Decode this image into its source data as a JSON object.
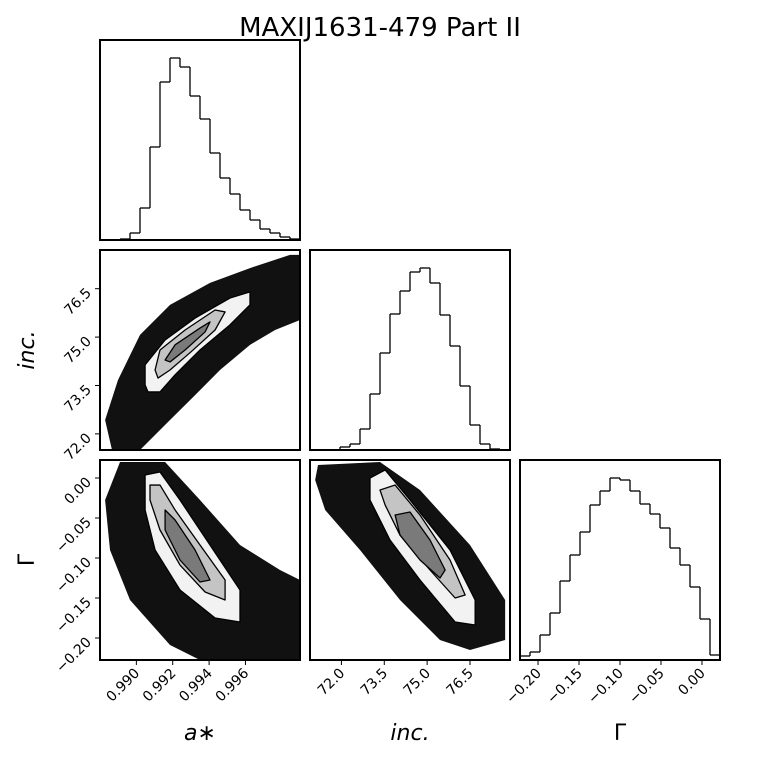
{
  "title": "MAXIJ1631-479 Part II",
  "chart_data": [
    {
      "type": "histogram",
      "color": "#000000",
      "xlim": [
        0.988,
        0.999
      ],
      "ylim": [
        0,
        200
      ],
      "bins": [
        0.988,
        0.98855,
        0.9891,
        0.98965,
        0.9902,
        0.99075,
        0.9913,
        0.99185,
        0.9924,
        0.99295,
        0.9935,
        0.99405,
        0.9946,
        0.99515,
        0.9957,
        0.99625,
        0.9968,
        0.99735,
        0.9979,
        0.99845,
        0.999
      ],
      "values": [
        0,
        0,
        1,
        7,
        32,
        93,
        158,
        182,
        173,
        144,
        121,
        87,
        62,
        46,
        30,
        20,
        11,
        7,
        3,
        1
      ]
    },
    {
      "type": "contour",
      "xlim": [
        0.988,
        0.999
      ],
      "ylim": [
        71.5,
        77.7
      ],
      "ylabel": "inc.",
      "yticks": [
        {
          "value": 72,
          "label": "72.0"
        },
        73.5,
        {
          "value": 75,
          "label": "75.0"
        },
        76.5
      ],
      "cloud_color": "#111111",
      "level_colors": [
        "#f2f2f2",
        "#c4c4c4",
        "#7a7a7a"
      ],
      "cloud": {
        "x": [
          0.98866,
          0.98828,
          0.98899,
          0.9902,
          0.99185,
          0.99405,
          0.99625,
          0.99845,
          0.999,
          0.999,
          0.99763,
          0.99625,
          0.9946,
          0.99323,
          0.99185,
          0.99075,
          0.9902
        ],
        "y": [
          71.5,
          72.43,
          73.67,
          75.07,
          76.0,
          76.68,
          77.14,
          77.55,
          77.55,
          75.53,
          75.22,
          74.76,
          73.98,
          73.2,
          72.43,
          71.81,
          71.5
        ]
      },
      "levels": [
        {
          "x": [
            0.99048,
            0.99048,
            0.99158,
            0.99323,
            0.99515,
            0.99625,
            0.99625,
            0.99515,
            0.9935,
            0.99213,
            0.9913,
            0.99064
          ],
          "y": [
            73.52,
            74.14,
            74.91,
            75.59,
            76.21,
            76.4,
            76.0,
            75.38,
            74.6,
            73.83,
            73.3,
            73.3
          ]
        },
        {
          "x": [
            0.99103,
            0.9913,
            0.99268,
            0.99433,
            0.99488,
            0.99433,
            0.993,
            0.99185,
            0.99119
          ],
          "y": [
            73.98,
            74.6,
            75.22,
            75.84,
            75.78,
            75.22,
            74.54,
            73.98,
            73.73
          ]
        },
        {
          "x": [
            0.99158,
            0.99213,
            0.9935,
            0.99405,
            0.99378,
            0.99268,
            0.99185
          ],
          "y": [
            74.29,
            74.76,
            75.28,
            75.47,
            75.16,
            74.6,
            74.23
          ]
        }
      ]
    },
    {
      "type": "histogram",
      "color": "#000000",
      "xlim": [
        70.9,
        77.9
      ],
      "ylim": [
        0,
        200
      ],
      "bins": [
        70.9,
        71.25,
        71.6,
        71.95,
        72.3,
        72.65,
        73.0,
        73.35,
        73.7,
        74.05,
        74.4,
        74.75,
        75.1,
        75.45,
        75.8,
        76.15,
        76.5,
        76.85,
        77.2,
        77.55,
        77.9
      ],
      "values": [
        0,
        0,
        0,
        3,
        6,
        21,
        56,
        97,
        136,
        159,
        178,
        182,
        167,
        135,
        104,
        64,
        25,
        6,
        1,
        0
      ]
    },
    {
      "type": "contour",
      "xlim": [
        0.988,
        0.999
      ],
      "ylim": [
        -0.2275,
        0.0225
      ],
      "xlabel": "a∗",
      "ylabel": "Γ",
      "xticks": [
        {
          "value": 0.99,
          "label": "0.990"
        },
        0.992,
        0.994,
        0.996
      ],
      "yticks": [
        {
          "value": 0,
          "label": "0.00"
        },
        {
          "value": -0.05,
          "label": "−0.05"
        },
        {
          "value": -0.1,
          "label": "−0.10"
        },
        {
          "value": -0.15,
          "label": "−0.15"
        },
        {
          "value": -0.2,
          "label": "−0.20"
        }
      ],
      "cloud_color": "#111111",
      "level_colors": [
        "#f2f2f2",
        "#c4c4c4",
        "#7a7a7a"
      ],
      "cloud": {
        "x": [
          0.9891,
          0.99158,
          0.9935,
          0.9957,
          0.9979,
          0.999,
          0.999,
          0.9935,
          0.99185,
          0.98965,
          0.98855,
          0.98828
        ],
        "y": [
          0.02,
          0.02,
          -0.0275,
          -0.0838,
          -0.115,
          -0.1275,
          -0.2275,
          -0.2275,
          -0.2088,
          -0.1525,
          -0.09,
          -0.0275
        ]
      },
      "levels": [
        {
          "x": [
            0.99048,
            0.9913,
            0.9924,
            0.99405,
            0.9957,
            0.9957,
            0.99433,
            0.9924,
            0.99103,
            0.99048
          ],
          "y": [
            0.0038,
            0.0075,
            -0.0275,
            -0.0838,
            -0.14,
            -0.18,
            -0.175,
            -0.14,
            -0.09,
            -0.04
          ]
        },
        {
          "x": [
            0.99075,
            0.9913,
            0.99213,
            0.9935,
            0.99488,
            0.99488,
            0.99378,
            0.9924,
            0.9913,
            0.99075
          ],
          "y": [
            -0.0088,
            -0.0088,
            -0.04,
            -0.0838,
            -0.1275,
            -0.1525,
            -0.1425,
            -0.1088,
            -0.065,
            -0.0275
          ]
        },
        {
          "x": [
            0.99158,
            0.99213,
            0.99323,
            0.99405,
            0.9935,
            0.9924,
            0.99158
          ],
          "y": [
            -0.04,
            -0.0525,
            -0.09,
            -0.1275,
            -0.13,
            -0.1025,
            -0.065
          ]
        }
      ]
    },
    {
      "type": "contour",
      "xlim": [
        70.9,
        77.9
      ],
      "ylim": [
        -0.2275,
        0.0225
      ],
      "xlabel": "inc.",
      "xticks": [
        {
          "value": 72,
          "label": "72.0"
        },
        73.5,
        {
          "value": 75,
          "label": "75.0"
        },
        76.5
      ],
      "cloud_color": "#111111",
      "level_colors": [
        "#f2f2f2",
        "#c4c4c4",
        "#7a7a7a"
      ],
      "cloud": {
        "x": [
          71.18,
          73.35,
          74.75,
          76.5,
          77.73,
          77.73,
          76.5,
          75.45,
          74.05,
          72.65,
          71.43,
          71.08
        ],
        "y": [
          0.0163,
          0.02,
          -0.015,
          -0.0838,
          -0.1525,
          -0.2025,
          -0.215,
          -0.2025,
          -0.1525,
          -0.09,
          -0.04,
          -0.0025
        ]
      },
      "levels": [
        {
          "x": [
            73.0,
            73.53,
            74.4,
            75.8,
            76.68,
            76.68,
            75.98,
            74.75,
            73.7,
            73.0
          ],
          "y": [
            0.0,
            0.01,
            -0.0275,
            -0.09,
            -0.1525,
            -0.1838,
            -0.18,
            -0.1275,
            -0.0775,
            -0.0275
          ]
        },
        {
          "x": [
            73.35,
            73.88,
            74.75,
            75.8,
            76.33,
            75.98,
            75.1,
            74.05,
            73.53
          ],
          "y": [
            -0.015,
            -0.0088,
            -0.0463,
            -0.1025,
            -0.1463,
            -0.15,
            -0.115,
            -0.0713,
            -0.0338
          ]
        },
        {
          "x": [
            73.88,
            74.4,
            75.1,
            75.63,
            75.45,
            74.75,
            74.05
          ],
          "y": [
            -0.0463,
            -0.0425,
            -0.0775,
            -0.115,
            -0.125,
            -0.1025,
            -0.0713
          ]
        }
      ]
    },
    {
      "type": "histogram",
      "color": "#000000",
      "xlim": [
        -0.222,
        0.022
      ],
      "ylim": [
        0,
        200
      ],
      "xlabel": "Γ",
      "xticks": [
        {
          "value": -0.2,
          "label": "−0.20"
        },
        {
          "value": -0.15,
          "label": "−0.15"
        },
        {
          "value": -0.1,
          "label": "−0.10"
        },
        {
          "value": -0.05,
          "label": "−0.05"
        },
        {
          "value": 0,
          "label": "0.00"
        }
      ],
      "bins": [
        -0.222,
        -0.2098,
        -0.1976,
        -0.1854,
        -0.1732,
        -0.161,
        -0.1488,
        -0.1366,
        -0.1244,
        -0.1122,
        -0.1,
        -0.0878,
        -0.0756,
        -0.0634,
        -0.0512,
        -0.039,
        -0.0268,
        -0.0146,
        -0.0024,
        0.0098,
        0.022
      ],
      "values": [
        4,
        8,
        25,
        47,
        79,
        105,
        128,
        155,
        169,
        182,
        180,
        169,
        156,
        146,
        132,
        112,
        95,
        73,
        41,
        5
      ]
    }
  ]
}
